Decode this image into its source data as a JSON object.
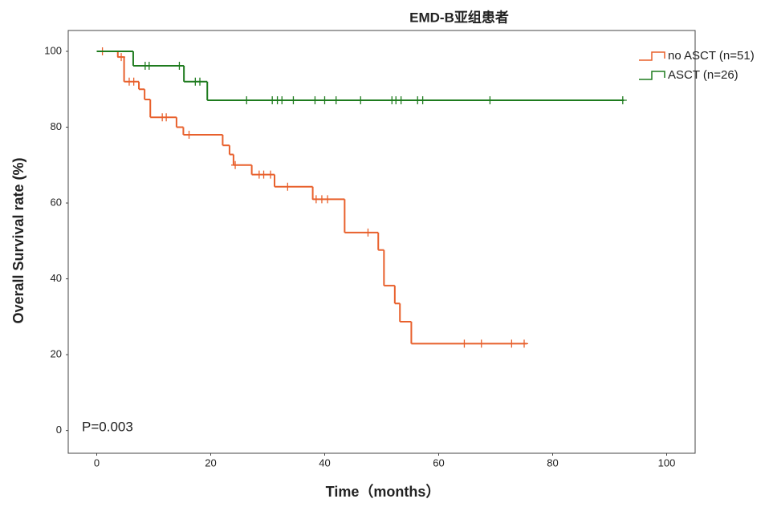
{
  "chart_data": {
    "type": "km",
    "title": "EMD-B亚组患者",
    "x_label": "Time（months）",
    "y_label": "Overall Survival rate (%)",
    "annotation": "P=0.003",
    "xlim": [
      -5,
      105
    ],
    "ylim": [
      -6,
      105.5
    ],
    "xticks": [
      0,
      20,
      40,
      60,
      80,
      100
    ],
    "yticks": [
      0,
      20,
      40,
      60,
      80,
      100
    ],
    "series": [
      {
        "name": "no ASCT (n=51)",
        "color": "#e8602c",
        "x": [
          0,
          3.7,
          4.8,
          7.4,
          8.4,
          9.4,
          14,
          15.2,
          22.1,
          23.3,
          24,
          27.2,
          31.2,
          37.9,
          43.5,
          49.4,
          50.4,
          52.3,
          53.2,
          55.2,
          75.5
        ],
        "values": [
          100,
          98.5,
          92,
          90,
          87.3,
          82.6,
          80,
          78,
          75.2,
          72.8,
          70,
          67.5,
          64.3,
          61,
          52.2,
          47.6,
          38.2,
          33.5,
          28.7,
          22.9,
          22.9
        ],
        "censored": {
          "x": [
            1,
            4.3,
            5.7,
            6.5,
            11.5,
            12.2,
            16.2,
            24.3,
            28.5,
            29.3,
            30.5,
            33.5,
            38.5,
            39.5,
            40.5,
            47.6,
            64.5,
            67.5,
            72.8,
            75
          ],
          "y": [
            100,
            98.5,
            92,
            92,
            82.6,
            82.6,
            78,
            70,
            67.5,
            67.5,
            67.5,
            64.3,
            61,
            61,
            61,
            52.2,
            22.9,
            22.9,
            22.9,
            22.9
          ]
        }
      },
      {
        "name": "ASCT (n=26)",
        "color": "#1e7b1e",
        "x": [
          0,
          6.4,
          15.3,
          19.4,
          92.5
        ],
        "values": [
          100,
          96.2,
          92,
          87.1,
          87.1
        ],
        "censored": {
          "x": [
            8.5,
            9.2,
            14.5,
            17.3,
            18.1,
            26.3,
            30.8,
            31.7,
            32.5,
            34.5,
            38.3,
            40,
            42,
            46.3,
            51.8,
            52.5,
            53.4,
            56.3,
            57.2,
            69,
            92.3
          ],
          "y": [
            96.2,
            96.2,
            96.2,
            92,
            92,
            87.1,
            87.1,
            87.1,
            87.1,
            87.1,
            87.1,
            87.1,
            87.1,
            87.1,
            87.1,
            87.1,
            87.1,
            87.1,
            87.1,
            87.1,
            87.1
          ]
        }
      }
    ]
  }
}
